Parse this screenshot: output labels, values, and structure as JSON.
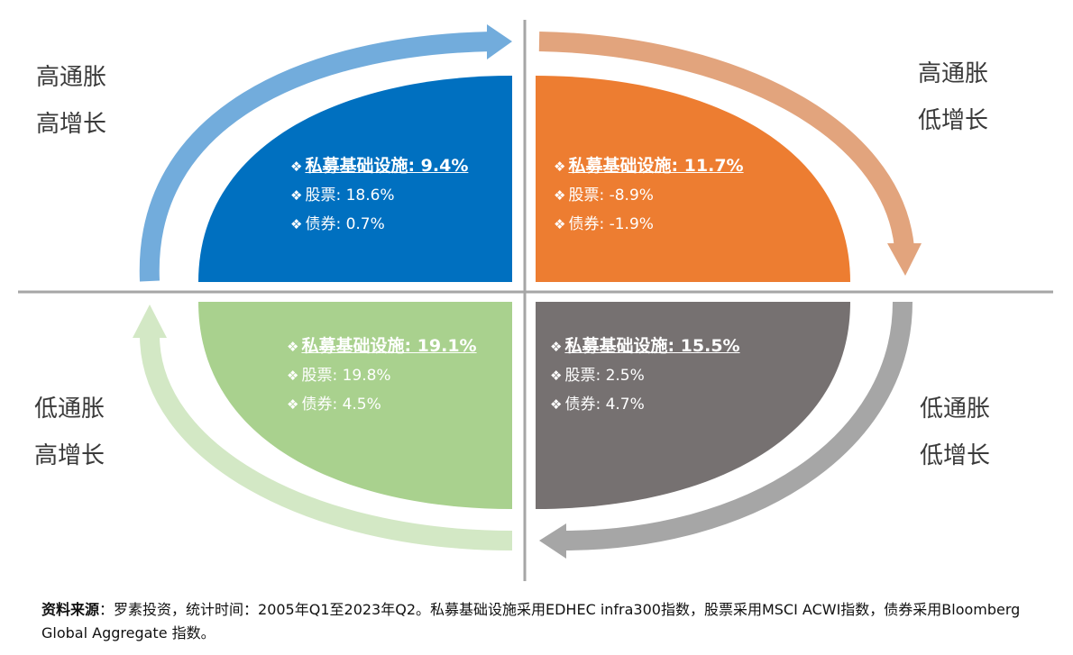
{
  "quadrants": {
    "top_left": {
      "label_line1": "高通胀",
      "label_line2": "高增长",
      "infra": "私募基础设施: 9.4%",
      "stocks": "股票: 18.6%",
      "bonds": "债券: 0.7%",
      "color": "#0070C0",
      "arrow_color": "#72ACDC"
    },
    "top_right": {
      "label_line1": "高通胀",
      "label_line2": "低增长",
      "infra": "私募基础设施: 11.7%",
      "stocks": "股票: -8.9%",
      "bonds": "债券: -1.9%",
      "color": "#ED7D31",
      "arrow_color": "#E2A47D"
    },
    "bottom_left": {
      "label_line1": "低通胀",
      "label_line2": "高增长",
      "infra": "私募基础设施: 19.1%",
      "stocks": "股票: 19.8%",
      "bonds": "债券: 4.5%",
      "color": "#A9D18E",
      "arrow_color": "#D3E8C5"
    },
    "bottom_right": {
      "label_line1": "低通胀",
      "label_line2": "低增长",
      "infra": "私募基础设施: 15.5%",
      "stocks": "股票: 2.5%",
      "bonds": "债券: 4.7%",
      "color": "#767171",
      "arrow_color": "#A6A6A6"
    }
  },
  "bullet_icon": "diamond-bullet",
  "footer": {
    "source_label": "资料来源",
    "source_text": "：罗素投资，统计时间：2005年Q1至2023年Q2。私募基础设施采用EDHEC infra300指数，股票采用MSCI ACWI指数，债券采用Bloomberg Global Aggregate 指数。"
  }
}
